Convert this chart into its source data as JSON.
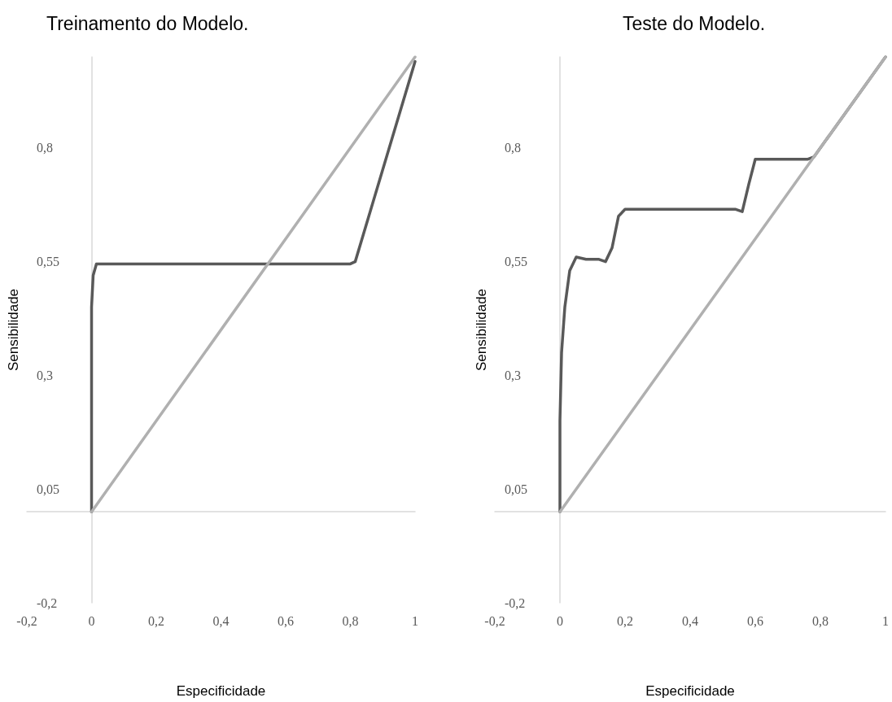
{
  "chart_data": [
    {
      "type": "line",
      "title": "Treinamento do Modelo.",
      "xlabel": "Especificidade",
      "ylabel": "Sensibilidade",
      "xlim": [
        -0.2,
        1
      ],
      "ylim": [
        -0.2,
        1
      ],
      "xticks": [
        {
          "value": -0.2,
          "label": "-0,2"
        },
        {
          "value": 0,
          "label": "0"
        },
        {
          "value": 0.2,
          "label": "0,2"
        },
        {
          "value": 0.4,
          "label": "0,4"
        },
        {
          "value": 0.6,
          "label": "0,6"
        },
        {
          "value": 0.8,
          "label": "0,8"
        },
        {
          "value": 1,
          "label": "1"
        }
      ],
      "yticks": [
        {
          "value": -0.2,
          "label": "-0,2"
        },
        {
          "value": 0.05,
          "label": "0,05"
        },
        {
          "value": 0.3,
          "label": "0,3"
        },
        {
          "value": 0.55,
          "label": "0,55"
        },
        {
          "value": 0.8,
          "label": "0,8"
        }
      ],
      "grid": false,
      "marker": "none",
      "line_style": "solid",
      "series": [
        {
          "color": "#595959",
          "x": [
            0,
            0,
            0.005,
            0.015,
            0.05,
            0.5,
            0.8,
            0.815,
            1
          ],
          "values": [
            0,
            0.45,
            0.52,
            0.545,
            0.545,
            0.545,
            0.545,
            0.55,
            0.99
          ]
        },
        {
          "color": "#b0b0b0",
          "x": [
            0,
            1
          ],
          "values": [
            0,
            1
          ]
        }
      ]
    },
    {
      "type": "line",
      "title": "Teste do Modelo.",
      "xlabel": "Especificidade",
      "ylabel": "Sensibilidade",
      "xlim": [
        -0.2,
        1
      ],
      "ylim": [
        -0.2,
        1
      ],
      "xticks": [
        {
          "value": -0.2,
          "label": "-0,2"
        },
        {
          "value": 0,
          "label": "0"
        },
        {
          "value": 0.2,
          "label": "0,2"
        },
        {
          "value": 0.4,
          "label": "0,4"
        },
        {
          "value": 0.6,
          "label": "0,6"
        },
        {
          "value": 0.8,
          "label": "0,8"
        },
        {
          "value": 1,
          "label": "1"
        }
      ],
      "yticks": [
        {
          "value": -0.2,
          "label": "-0,2"
        },
        {
          "value": 0.05,
          "label": "0,05"
        },
        {
          "value": 0.3,
          "label": "0,3"
        },
        {
          "value": 0.55,
          "label": "0,55"
        },
        {
          "value": 0.8,
          "label": "0,8"
        }
      ],
      "grid": false,
      "marker": "none",
      "line_style": "solid",
      "series": [
        {
          "color": "#595959",
          "x": [
            0,
            0,
            0.005,
            0.015,
            0.03,
            0.05,
            0.08,
            0.12,
            0.14,
            0.16,
            0.18,
            0.2,
            0.4,
            0.54,
            0.56,
            0.58,
            0.6,
            0.7,
            0.76,
            0.78,
            0.9,
            1
          ],
          "values": [
            0,
            0.2,
            0.35,
            0.45,
            0.53,
            0.56,
            0.555,
            0.555,
            0.55,
            0.58,
            0.65,
            0.665,
            0.665,
            0.665,
            0.66,
            0.72,
            0.775,
            0.775,
            0.775,
            0.78,
            0.9,
            1
          ]
        },
        {
          "color": "#b0b0b0",
          "x": [
            0,
            1
          ],
          "values": [
            0,
            1
          ]
        }
      ]
    }
  ]
}
